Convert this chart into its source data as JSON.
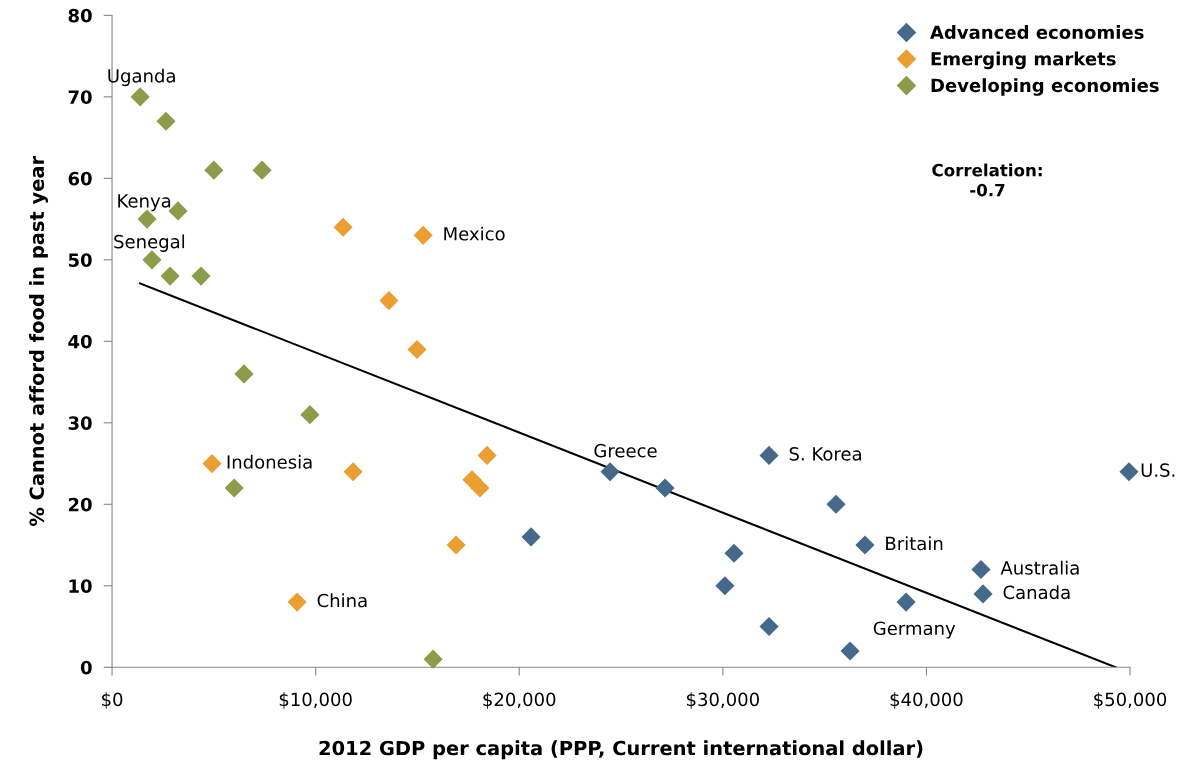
{
  "chart_data": {
    "type": "scatter",
    "xlabel": "2012 GDP per capita (PPP, Current international dollar)",
    "ylabel": "% Cannot afford food in past year",
    "xlim": [
      0,
      50000
    ],
    "ylim": [
      0,
      80
    ],
    "xticks": [
      {
        "value": 0,
        "label": "$0"
      },
      {
        "value": 10000,
        "label": "$10,000"
      },
      {
        "value": 20000,
        "label": "$20,000"
      },
      {
        "value": 30000,
        "label": "$30,000"
      },
      {
        "value": 40000,
        "label": "$40,000"
      },
      {
        "value": 50000,
        "label": "$50,000"
      }
    ],
    "yticks": [
      0,
      10,
      20,
      30,
      40,
      50,
      60,
      70,
      80
    ],
    "marker": "diamond",
    "grid": false,
    "legend": "top right",
    "series": [
      {
        "name": "Advanced economies",
        "color": "#44698a",
        "x": [
          20580,
          24460,
          27160,
          32270,
          35560,
          36980,
          30550,
          30100,
          42680,
          42780,
          39000,
          32270,
          36250,
          49950
        ],
        "values": [
          16,
          24,
          22,
          26,
          20,
          15,
          14,
          10,
          12,
          9,
          8,
          5,
          2,
          24
        ]
      },
      {
        "name": "Emerging markets",
        "color": "#eb9f33",
        "x": [
          11350,
          15280,
          13600,
          14980,
          4910,
          11840,
          18420,
          17680,
          18070,
          16900,
          9090
        ],
        "values": [
          54,
          53,
          45,
          39,
          25,
          24,
          26,
          23,
          22,
          15,
          8
        ]
      },
      {
        "name": "Developing economies",
        "color": "#8c9c48",
        "x": [
          1380,
          2650,
          5000,
          7370,
          1720,
          3240,
          1960,
          2850,
          4370,
          6480,
          9720,
          6000,
          15770
        ],
        "values": [
          70,
          67,
          61,
          61,
          55,
          56,
          50,
          48,
          48,
          36,
          31,
          22,
          1
        ]
      },
      {
        "type": "line",
        "marker": "none",
        "color": "#000000",
        "x": [
          1380,
          49300
        ],
        "values": [
          47.1,
          0
        ]
      }
    ],
    "annotations": [
      {
        "text": "Uganda",
        "x": 1380,
        "y": 70
      },
      {
        "text": "Kenya",
        "x": 1720,
        "y": 55
      },
      {
        "text": "Senegal",
        "x": 1960,
        "y": 50
      },
      {
        "text": "Mexico",
        "x": 15280,
        "y": 53
      },
      {
        "text": "Indonesia",
        "x": 4910,
        "y": 25
      },
      {
        "text": "China",
        "x": 9090,
        "y": 8
      },
      {
        "text": "Greece",
        "x": 24460,
        "y": 24
      },
      {
        "text": "S. Korea",
        "x": 32270,
        "y": 26
      },
      {
        "text": "U.S.",
        "x": 49950,
        "y": 24
      },
      {
        "text": "Britain",
        "x": 36980,
        "y": 15
      },
      {
        "text": "Australia",
        "x": 42680,
        "y": 12
      },
      {
        "text": "Canada",
        "x": 42780,
        "y": 9
      },
      {
        "text": "Germany",
        "x": 39000,
        "y": 8
      },
      "Correlation:\n-0.7"
    ]
  }
}
